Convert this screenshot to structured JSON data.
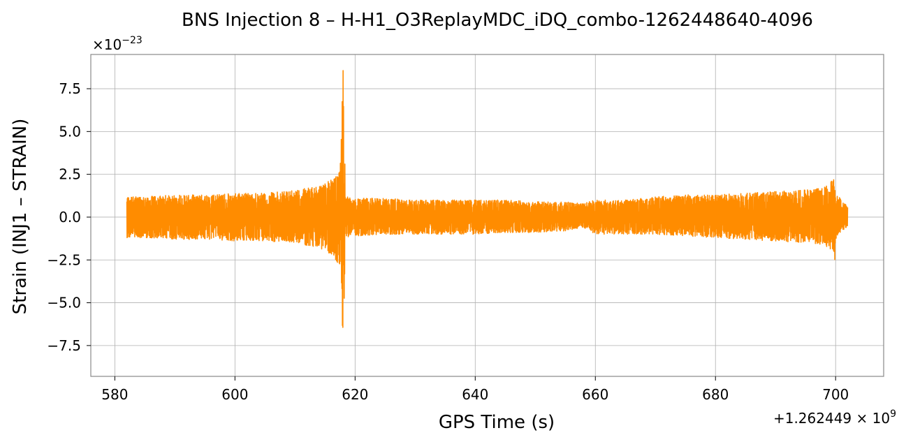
{
  "chart_data": {
    "type": "line",
    "title": "BNS Injection 8 – H-H1_O3ReplayMDC_iDQ_combo-1262448640-4096",
    "xlabel": "GPS Time (s)",
    "ylabel": "Strain (INJ1 – STRAIN)",
    "y_multiplier_label": "×10",
    "y_multiplier_exp": "−23",
    "x_offset_label": "+1.262449 × 10",
    "x_offset_exp": "9",
    "xlim": [
      576,
      708
    ],
    "ylim": [
      -9.3,
      9.5
    ],
    "x_ticks": [
      580,
      600,
      620,
      640,
      660,
      680,
      700
    ],
    "x_tick_labels": [
      "580",
      "600",
      "620",
      "640",
      "660",
      "680",
      "700"
    ],
    "y_ticks": [
      -7.5,
      -5.0,
      -2.5,
      0.0,
      2.5,
      5.0,
      7.5
    ],
    "y_tick_labels": [
      "−7.5",
      "−5.0",
      "−2.5",
      "0.0",
      "2.5",
      "5.0",
      "7.5"
    ],
    "grid": true,
    "line_color": "#ff8c00",
    "series": [
      {
        "envelope_x": [
          582,
          585,
          590,
          595,
          600,
          605,
          610,
          614,
          616,
          617,
          617.6,
          618,
          618.2,
          618.4,
          618.6,
          620,
          625,
          630,
          635,
          640,
          645,
          650,
          655,
          658,
          660,
          665,
          670,
          675,
          680,
          685,
          690,
          695,
          698,
          699.6,
          699.8,
          700,
          700.5,
          701,
          702
        ],
        "envelope_upper": [
          1.2,
          1.2,
          1.3,
          1.3,
          1.4,
          1.4,
          1.6,
          1.8,
          2.2,
          2.5,
          3.5,
          8.7,
          5.0,
          1.4,
          1.2,
          1.1,
          1.1,
          1.0,
          1.0,
          1.0,
          1.0,
          0.9,
          0.9,
          0.8,
          1.0,
          1.0,
          1.2,
          1.3,
          1.3,
          1.4,
          1.5,
          1.6,
          1.7,
          2.2,
          2.7,
          1.3,
          1.2,
          1.0,
          0.6
        ],
        "envelope_lower": [
          -1.2,
          -1.2,
          -1.3,
          -1.3,
          -1.4,
          -1.4,
          -1.5,
          -1.8,
          -2.2,
          -2.7,
          -3.5,
          -8.5,
          -5.0,
          -1.4,
          -1.2,
          -1.1,
          -1.0,
          -1.0,
          -1.0,
          -1.0,
          -0.9,
          -0.9,
          -0.8,
          -0.6,
          -1.0,
          -1.0,
          -1.0,
          -1.1,
          -1.2,
          -1.3,
          -1.4,
          -1.5,
          -1.6,
          -2.0,
          -4.4,
          -1.3,
          -1.0,
          -0.8,
          -0.6
        ]
      }
    ]
  }
}
